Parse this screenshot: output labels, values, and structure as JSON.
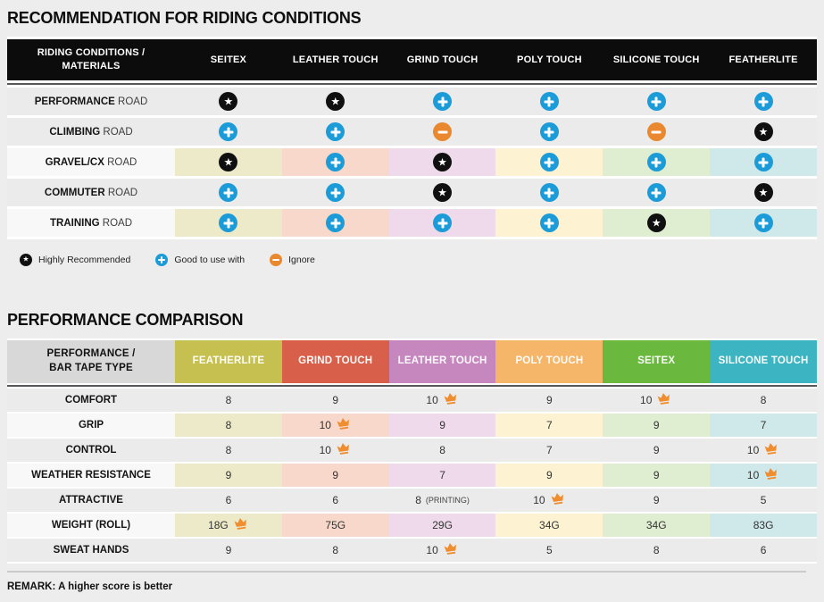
{
  "table1": {
    "title": "RECOMMENDATION FOR RIDING CONDITIONS",
    "corner_line1": "RIDING CONDITIONS /",
    "corner_line2": "MATERIALS",
    "columns": [
      "SEITEX",
      "LEATHER TOUCH",
      "GRIND TOUCH",
      "POLY TOUCH",
      "SILICONE TOUCH",
      "FEATHERLITE"
    ],
    "rows": [
      {
        "material": "PERFORMANCE",
        "suffix": "ROAD",
        "tinted": false,
        "cells": [
          "star",
          "star",
          "plus",
          "plus",
          "plus",
          "plus"
        ]
      },
      {
        "material": "CLIMBING",
        "suffix": "ROAD",
        "tinted": false,
        "cells": [
          "plus",
          "plus",
          "minus",
          "plus",
          "minus",
          "star"
        ]
      },
      {
        "material": "GRAVEL/CX",
        "suffix": "ROAD",
        "tinted": true,
        "cells": [
          "star",
          "plus",
          "star",
          "plus",
          "plus",
          "plus"
        ]
      },
      {
        "material": "COMMUTER",
        "suffix": "ROAD",
        "tinted": false,
        "cells": [
          "plus",
          "plus",
          "star",
          "plus",
          "plus",
          "star"
        ]
      },
      {
        "material": "TRAINING",
        "suffix": "ROAD",
        "tinted": true,
        "cells": [
          "plus",
          "plus",
          "plus",
          "plus",
          "star",
          "plus"
        ]
      }
    ],
    "column_tints": [
      "#eceac9",
      "#f7d8ca",
      "#efdaec",
      "#fdf3d3",
      "#dfedd0",
      "#cfe8ea"
    ],
    "legend": [
      {
        "icon": "star",
        "label": "Highly Recommended"
      },
      {
        "icon": "plus",
        "label": "Good to use with"
      },
      {
        "icon": "minus",
        "label": "Ignore"
      }
    ]
  },
  "table2": {
    "title": "PERFORMANCE COMPARISON",
    "corner_line1": "PERFORMANCE /",
    "corner_line2": "BAR TAPE TYPE",
    "columns": [
      {
        "label": "FEATHERLITE",
        "color": "#c6c051",
        "tint": "#eceac9"
      },
      {
        "label": "GRIND TOUCH",
        "color": "#d8604b",
        "tint": "#f7d8ca"
      },
      {
        "label": "LEATHER TOUCH",
        "color": "#c687bf",
        "tint": "#efdaec"
      },
      {
        "label": "POLY TOUCH",
        "color": "#f5b669",
        "tint": "#fdf3d3"
      },
      {
        "label": "SEITEX",
        "color": "#6ab83e",
        "tint": "#dfedd0"
      },
      {
        "label": "SILICONE TOUCH",
        "color": "#3cb4c1",
        "tint": "#cfe8ea"
      }
    ],
    "rows": [
      {
        "label": "COMFORT",
        "tinted": false,
        "cells": [
          {
            "value": "8"
          },
          {
            "value": "9"
          },
          {
            "value": "10",
            "crown": true
          },
          {
            "value": "9"
          },
          {
            "value": "10",
            "crown": true
          },
          {
            "value": "8"
          }
        ]
      },
      {
        "label": "GRIP",
        "tinted": true,
        "cells": [
          {
            "value": "8"
          },
          {
            "value": "10",
            "crown": true
          },
          {
            "value": "9"
          },
          {
            "value": "7"
          },
          {
            "value": "9"
          },
          {
            "value": "7"
          }
        ]
      },
      {
        "label": "CONTROL",
        "tinted": false,
        "cells": [
          {
            "value": "8"
          },
          {
            "value": "10",
            "crown": true
          },
          {
            "value": "8"
          },
          {
            "value": "7"
          },
          {
            "value": "9"
          },
          {
            "value": "10",
            "crown": true
          }
        ]
      },
      {
        "label": "WEATHER RESISTANCE",
        "tinted": true,
        "cells": [
          {
            "value": "9"
          },
          {
            "value": "9"
          },
          {
            "value": "7"
          },
          {
            "value": "9"
          },
          {
            "value": "9"
          },
          {
            "value": "10",
            "crown": true
          }
        ]
      },
      {
        "label": "ATTRACTIVE",
        "tinted": false,
        "cells": [
          {
            "value": "6"
          },
          {
            "value": "6"
          },
          {
            "value": "8",
            "suffix": "(PRINTING)"
          },
          {
            "value": "10",
            "crown": true
          },
          {
            "value": "9"
          },
          {
            "value": "5"
          }
        ]
      },
      {
        "label": "WEIGHT (ROLL)",
        "tinted": true,
        "cells": [
          {
            "value": "18G",
            "crown": true
          },
          {
            "value": "75G"
          },
          {
            "value": "29G"
          },
          {
            "value": "34G"
          },
          {
            "value": "34G"
          },
          {
            "value": "83G"
          }
        ]
      },
      {
        "label": "SWEAT HANDS",
        "tinted": false,
        "cells": [
          {
            "value": "9"
          },
          {
            "value": "8"
          },
          {
            "value": "10",
            "crown": true
          },
          {
            "value": "5"
          },
          {
            "value": "8"
          },
          {
            "value": "6"
          }
        ]
      }
    ],
    "remark": "REMARK: A higher score is better"
  },
  "colors": {
    "star_icon": "#101010",
    "plus_icon": "#1b9cd8",
    "minus_icon": "#e9882e",
    "crown_icon": "#f08d2e",
    "table1_header_bg": "#0c0c0c",
    "table2_corner_bg": "#d8d8d8",
    "row_plain_bg": "#ebebeb",
    "page_bg": "#ededed"
  }
}
